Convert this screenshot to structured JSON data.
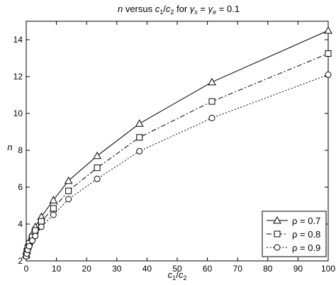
{
  "chart_data": {
    "type": "line",
    "title": "n versus c1/c2 for γs = γe = 0.1",
    "title_parts": {
      "n": "n",
      "versus": " versus ",
      "c": "c",
      "one": "1",
      "slash": "/",
      "two": "2",
      "for": " for ",
      "gamma": "γ",
      "s": "s",
      "eq": " = ",
      "e": "e",
      "val": " = 0.1"
    },
    "xlabel": "c1/c2",
    "xlabel_parts": {
      "c": "c",
      "one": "1",
      "slash": "/",
      "two": "2"
    },
    "ylabel": "n",
    "xlim": [
      0,
      100
    ],
    "ylim": [
      2,
      15
    ],
    "xticks": [
      0,
      10,
      20,
      30,
      40,
      50,
      60,
      70,
      80,
      90,
      100
    ],
    "yticks": [
      2,
      4,
      6,
      8,
      10,
      12,
      14
    ],
    "grid": false,
    "legend_position": "bottom-right",
    "series": [
      {
        "name": "ρ = 0.7",
        "marker": "triangle",
        "linestyle": "solid",
        "x": [
          0,
          0.2,
          0.5,
          1,
          2,
          3,
          5,
          9,
          14,
          23.5,
          37.5,
          61.5,
          100
        ],
        "y": [
          2.35,
          2.55,
          2.8,
          3.05,
          3.45,
          3.85,
          4.4,
          5.3,
          6.35,
          7.7,
          9.45,
          11.7,
          14.5
        ]
      },
      {
        "name": "ρ = 0.8",
        "marker": "square",
        "linestyle": "dashdot",
        "x": [
          0,
          0.2,
          0.5,
          1,
          2,
          3,
          5,
          9,
          14,
          23.5,
          37.5,
          61.5,
          100
        ],
        "y": [
          2.3,
          2.5,
          2.7,
          2.95,
          3.3,
          3.65,
          4.15,
          4.85,
          5.8,
          7.05,
          8.7,
          10.65,
          13.25
        ]
      },
      {
        "name": "ρ = 0.9",
        "marker": "circle",
        "linestyle": "dotted",
        "x": [
          0,
          0.2,
          0.5,
          1,
          2,
          3,
          5,
          9,
          14,
          23.5,
          37.5,
          61.5,
          100
        ],
        "y": [
          2.25,
          2.4,
          2.6,
          2.8,
          3.1,
          3.35,
          3.85,
          4.5,
          5.35,
          6.45,
          7.95,
          9.75,
          12.1
        ]
      }
    ]
  }
}
